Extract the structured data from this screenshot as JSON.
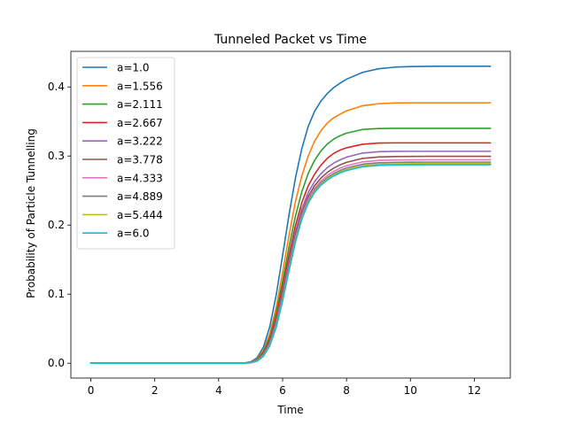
{
  "chart_data": {
    "type": "line",
    "title": "Tunneled Packet vs Time",
    "xlabel": "Time",
    "ylabel": "Probability of Particle Tunnelling",
    "xlim": [
      -0.625,
      13.125
    ],
    "ylim": [
      -0.0215,
      0.4515
    ],
    "xticks": [
      0,
      2,
      4,
      6,
      8,
      10,
      12
    ],
    "xtick_labels": [
      "0",
      "2",
      "4",
      "6",
      "8",
      "10",
      "12"
    ],
    "yticks": [
      0.0,
      0.1,
      0.2,
      0.3,
      0.4
    ],
    "ytick_labels": [
      "0.0",
      "0.1",
      "0.2",
      "0.3",
      "0.4"
    ],
    "grid": false,
    "legend_position": "top-left",
    "x": [
      0,
      0.5,
      1,
      1.5,
      2,
      2.5,
      3,
      3.5,
      4,
      4.5,
      4.8,
      5,
      5.2,
      5.4,
      5.6,
      5.8,
      6,
      6.2,
      6.4,
      6.6,
      6.8,
      7,
      7.2,
      7.4,
      7.6,
      7.8,
      8,
      8.5,
      9,
      9.5,
      10,
      10.5,
      11,
      11.5,
      12,
      12.5
    ],
    "series": [
      {
        "name": "a=1.0",
        "color": "#1f77b4",
        "values": [
          0,
          0,
          0,
          0,
          0,
          0,
          0,
          0,
          0,
          0,
          0.0004,
          0.002,
          0.0079,
          0.0232,
          0.053,
          0.0988,
          0.1558,
          0.2145,
          0.2676,
          0.3105,
          0.3426,
          0.3646,
          0.3795,
          0.3905,
          0.3991,
          0.4054,
          0.4112,
          0.4211,
          0.4263,
          0.4286,
          0.4295,
          0.4298,
          0.43,
          0.43,
          0.43,
          0.43
        ]
      },
      {
        "name": "a=1.556",
        "color": "#ff7f0e",
        "values": [
          0,
          0,
          0,
          0,
          0,
          0,
          0,
          0,
          0,
          0,
          0.0003,
          0.0015,
          0.0064,
          0.0187,
          0.0428,
          0.0812,
          0.1314,
          0.1849,
          0.2335,
          0.2711,
          0.2997,
          0.3213,
          0.3366,
          0.3477,
          0.3555,
          0.3606,
          0.3653,
          0.3728,
          0.3757,
          0.3767,
          0.377,
          0.377,
          0.377,
          0.377,
          0.377,
          0.377
        ]
      },
      {
        "name": "a=2.111",
        "color": "#2ca02c",
        "values": [
          0,
          0,
          0,
          0,
          0,
          0,
          0,
          0,
          0,
          0,
          0.0003,
          0.0013,
          0.0055,
          0.0164,
          0.0379,
          0.0728,
          0.1186,
          0.1678,
          0.2125,
          0.248,
          0.2746,
          0.2937,
          0.3074,
          0.3174,
          0.3245,
          0.3294,
          0.3331,
          0.3384,
          0.3398,
          0.3401,
          0.3401,
          0.3401,
          0.3401,
          0.3401,
          0.3401,
          0.3401
        ]
      },
      {
        "name": "a=2.667",
        "color": "#d62728",
        "values": [
          0,
          0,
          0,
          0,
          0,
          0,
          0,
          0,
          0,
          0,
          0.0002,
          0.0011,
          0.0048,
          0.0146,
          0.0342,
          0.0663,
          0.1091,
          0.156,
          0.1987,
          0.2325,
          0.2566,
          0.2737,
          0.2867,
          0.2967,
          0.3038,
          0.3085,
          0.3119,
          0.317,
          0.3187,
          0.319,
          0.319,
          0.319,
          0.319,
          0.319,
          0.319,
          0.319
        ]
      },
      {
        "name": "a=3.222",
        "color": "#9467bd",
        "values": [
          0,
          0,
          0,
          0,
          0,
          0,
          0,
          0,
          0,
          0,
          0.0002,
          0.001,
          0.0043,
          0.0132,
          0.0314,
          0.0617,
          0.1026,
          0.1482,
          0.19,
          0.2235,
          0.247,
          0.2629,
          0.2744,
          0.2832,
          0.2897,
          0.2945,
          0.2983,
          0.3042,
          0.3062,
          0.3067,
          0.3068,
          0.3068,
          0.3068,
          0.3068,
          0.3068,
          0.3068
        ]
      },
      {
        "name": "a=3.778",
        "color": "#8c564b",
        "values": [
          0,
          0,
          0,
          0,
          0,
          0,
          0,
          0,
          0,
          0,
          0.0002,
          0.0009,
          0.0039,
          0.0121,
          0.0293,
          0.0584,
          0.0982,
          0.1429,
          0.1843,
          0.2177,
          0.2412,
          0.257,
          0.268,
          0.2763,
          0.2825,
          0.2872,
          0.2908,
          0.2965,
          0.2986,
          0.2992,
          0.2994,
          0.2995,
          0.2995,
          0.2995,
          0.2995,
          0.2995
        ]
      },
      {
        "name": "a=4.333",
        "color": "#e377c2",
        "values": [
          0,
          0,
          0,
          0,
          0,
          0,
          0,
          0,
          0,
          0,
          0.0002,
          0.0008,
          0.0036,
          0.0113,
          0.0277,
          0.056,
          0.0951,
          0.1393,
          0.1804,
          0.2138,
          0.2373,
          0.253,
          0.2638,
          0.2718,
          0.2778,
          0.2824,
          0.2859,
          0.2915,
          0.2936,
          0.2942,
          0.2944,
          0.2945,
          0.2945,
          0.2945,
          0.2945,
          0.2945
        ]
      },
      {
        "name": "a=4.889",
        "color": "#7f7f7f",
        "values": [
          0,
          0,
          0,
          0,
          0,
          0,
          0,
          0,
          0,
          0,
          0.0001,
          0.0008,
          0.0034,
          0.0107,
          0.0266,
          0.0542,
          0.0928,
          0.1368,
          0.1778,
          0.2111,
          0.2346,
          0.2502,
          0.2608,
          0.2687,
          0.2746,
          0.2791,
          0.2826,
          0.2881,
          0.2902,
          0.2908,
          0.291,
          0.2911,
          0.2911,
          0.2911,
          0.2911,
          0.2911
        ]
      },
      {
        "name": "a=5.444",
        "color": "#bcbd22",
        "values": [
          0,
          0,
          0,
          0,
          0,
          0,
          0,
          0,
          0,
          0,
          0.0001,
          0.0007,
          0.0032,
          0.0103,
          0.0258,
          0.053,
          0.0913,
          0.1351,
          0.1761,
          0.2094,
          0.2328,
          0.2484,
          0.2589,
          0.2667,
          0.2725,
          0.277,
          0.2804,
          0.2859,
          0.288,
          0.2886,
          0.2888,
          0.2889,
          0.2889,
          0.2889,
          0.2889,
          0.2889
        ]
      },
      {
        "name": "a=6.0",
        "color": "#17becf",
        "values": [
          0,
          0,
          0,
          0,
          0,
          0,
          0,
          0,
          0,
          0,
          0.0001,
          0.0007,
          0.0031,
          0.0099,
          0.0251,
          0.052,
          0.09,
          0.1337,
          0.1747,
          0.2081,
          0.2315,
          0.2471,
          0.2576,
          0.2653,
          0.2711,
          0.2755,
          0.2789,
          0.2844,
          0.2864,
          0.287,
          0.2872,
          0.2873,
          0.2873,
          0.2873,
          0.2873,
          0.2873
        ]
      }
    ]
  }
}
